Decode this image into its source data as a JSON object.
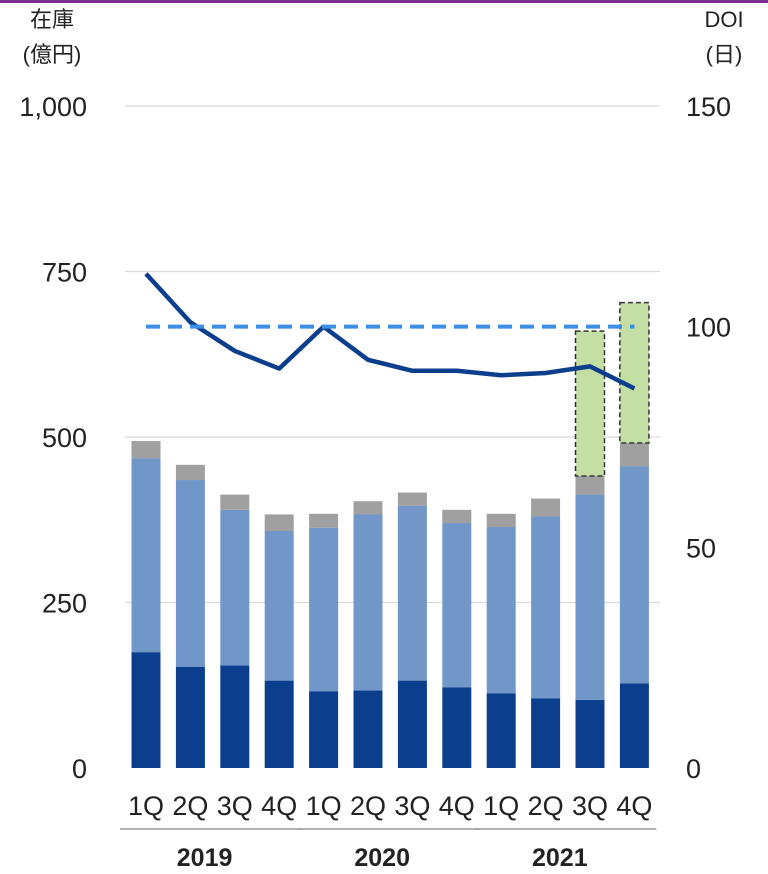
{
  "chart_data": {
    "type": "bar",
    "left_axis_label_line1": "在庫",
    "left_axis_label_line2": "(億円)",
    "right_axis_label_line1": "DOI",
    "right_axis_label_line2": "(日)",
    "left_ylim": [
      0,
      1000
    ],
    "left_ticks": [
      "0",
      "250",
      "500",
      "750",
      "1,000"
    ],
    "left_tick_values": [
      0,
      250,
      500,
      750,
      1000
    ],
    "right_ylim": [
      0,
      150
    ],
    "right_ticks": [
      "0",
      "50",
      "100",
      "150"
    ],
    "right_tick_values": [
      0,
      50,
      100,
      150
    ],
    "grid": true,
    "categories": [
      "1Q",
      "2Q",
      "3Q",
      "4Q",
      "1Q",
      "2Q",
      "3Q",
      "4Q",
      "1Q",
      "2Q",
      "3Q",
      "4Q"
    ],
    "years": [
      {
        "label": "2019",
        "start": 0,
        "end": 3
      },
      {
        "label": "2020",
        "start": 4,
        "end": 7
      },
      {
        "label": "2021",
        "start": 8,
        "end": 11
      }
    ],
    "series": [
      {
        "kind": "bar",
        "axis": "left",
        "color": "#0b3f8e",
        "values": [
          175,
          153,
          155,
          132,
          116,
          117,
          132,
          122,
          113,
          105,
          103,
          128
        ]
      },
      {
        "kind": "bar",
        "axis": "left",
        "color": "#7097c8",
        "values": [
          293,
          282,
          235,
          226,
          247,
          266,
          264,
          248,
          251,
          275,
          310,
          328
        ]
      },
      {
        "kind": "bar",
        "axis": "left",
        "color": "#a0a0a0",
        "values": [
          26,
          23,
          23,
          25,
          21,
          20,
          20,
          20,
          20,
          27,
          28,
          35
        ]
      },
      {
        "kind": "bar",
        "axis": "left",
        "color": "#c3dfa4",
        "dashed_outline": true,
        "values": [
          0,
          0,
          0,
          0,
          0,
          0,
          0,
          0,
          0,
          0,
          219,
          212
        ]
      },
      {
        "kind": "line",
        "axis": "right",
        "color": "#0b3f8e",
        "values": [
          112,
          101,
          94.5,
          90.5,
          100,
          92.5,
          90,
          90,
          89,
          89.5,
          91,
          86
        ]
      },
      {
        "kind": "line",
        "axis": "right",
        "color": "#3c8ee6",
        "dashed": true,
        "values": [
          100,
          100,
          100,
          100,
          100,
          100,
          100,
          100,
          100,
          100,
          100,
          100
        ]
      }
    ]
  }
}
